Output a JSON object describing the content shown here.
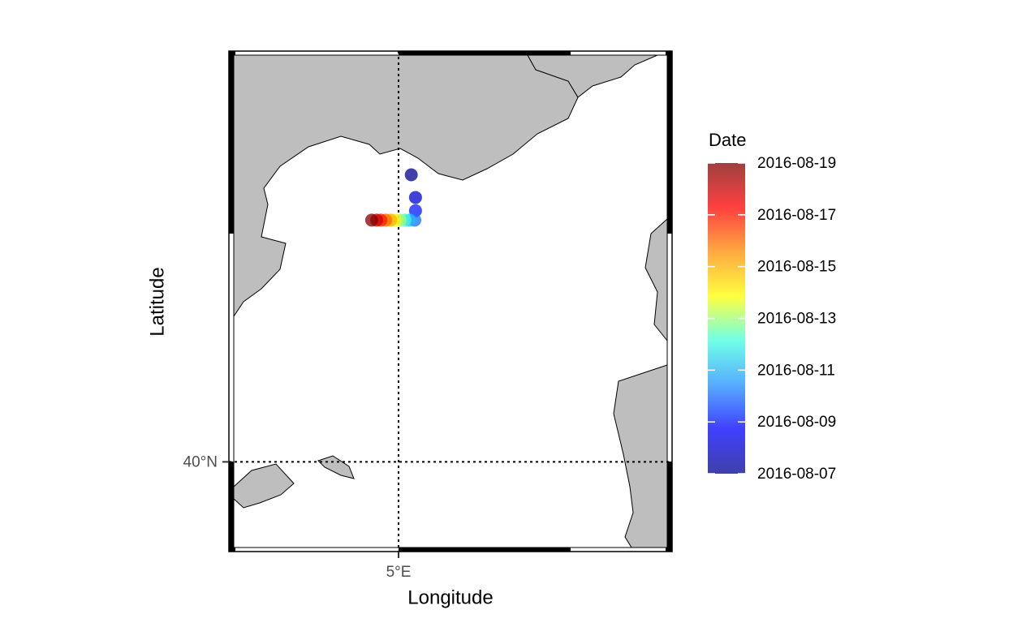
{
  "chart_data": {
    "type": "scatter",
    "xlabel": "Longitude",
    "ylabel": "Latitude",
    "colorbar_title": "Date",
    "xlim": [
      2.6,
      8.87
    ],
    "ylim": [
      39.05,
      44.35
    ],
    "xticks": [
      {
        "value": 5,
        "label": "5°E"
      }
    ],
    "yticks": [
      {
        "value": 40,
        "label": "40°N"
      }
    ],
    "grid": true,
    "x": [
      5.18,
      5.24,
      5.24,
      5.23,
      5.16,
      5.09,
      5.02,
      4.95,
      4.89,
      4.82,
      4.75,
      4.69,
      4.62
    ],
    "y": [
      43.04,
      42.8,
      42.66,
      42.56,
      42.56,
      42.56,
      42.56,
      42.56,
      42.56,
      42.56,
      42.56,
      42.56,
      42.56
    ],
    "dates": [
      "2016-08-07",
      "2016-08-08",
      "2016-08-09",
      "2016-08-10",
      "2016-08-11",
      "2016-08-12",
      "2016-08-13",
      "2016-08-14",
      "2016-08-15",
      "2016-08-16",
      "2016-08-17",
      "2016-08-18",
      "2016-08-19"
    ],
    "clim": [
      "2016-08-07",
      "2016-08-19"
    ],
    "colorticks": [
      "2016-08-07",
      "2016-08-09",
      "2016-08-11",
      "2016-08-13",
      "2016-08-15",
      "2016-08-17",
      "2016-08-19"
    ],
    "colormap": [
      "#00008b",
      "#0000ff",
      "#1e90ff",
      "#40ffe0",
      "#ffff00",
      "#ff8c00",
      "#ff0000",
      "#800000"
    ],
    "opacity": 0.75
  }
}
